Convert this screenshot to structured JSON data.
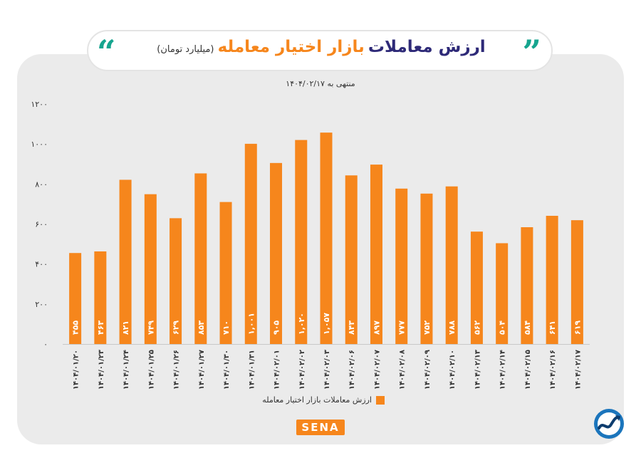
{
  "header": {
    "title_dark": "ارزش معاملات",
    "title_accent": "بازار اختیار معامله",
    "unit": "(میلیارد تومان)"
  },
  "subtitle": "منتهی به ۱۴۰۴/۰۲/۱۷",
  "legend": {
    "label": "ارزش معاملات بازار اختیار معامله"
  },
  "brand": {
    "logo_text": "SENA"
  },
  "colors": {
    "bar": "#f6861c",
    "accent": "#16a58f",
    "title": "#2e2a78",
    "panel": "#ebebeb"
  },
  "chart_data": {
    "type": "bar",
    "ylim": [
      0,
      1200
    ],
    "yticks": [
      0,
      200,
      400,
      600,
      800,
      1000,
      1200
    ],
    "ytick_labels": [
      "۰",
      "۲۰۰",
      "۴۰۰",
      "۶۰۰",
      "۸۰۰",
      "۱۰۰۰",
      "۱۲۰۰"
    ],
    "grid": false,
    "legend_position": "bottom",
    "categories": [
      "۱۴۰۴/۰۱/۲۰",
      "۱۴۰۴/۰۱/۲۳",
      "۱۴۰۴/۰۱/۲۴",
      "۱۴۰۴/۰۱/۲۵",
      "۱۴۰۴/۰۱/۲۶",
      "۱۴۰۴/۰۱/۲۷",
      "۱۴۰۴/۰۱/۳۰",
      "۱۴۰۴/۰۱/۳۱",
      "۱۴۰۴/۰۲/۰۱",
      "۱۴۰۴/۰۲/۰۲",
      "۱۴۰۴/۰۲/۰۳",
      "۱۴۰۴/۰۲/۰۶",
      "۱۴۰۴/۰۲/۰۷",
      "۱۴۰۴/۰۲/۰۸",
      "۱۴۰۴/۰۲/۰۹",
      "۱۴۰۴/۰۲/۱۰",
      "۱۴۰۴/۰۲/۱۳",
      "۱۴۰۴/۰۲/۱۴",
      "۱۴۰۴/۰۲/۱۵",
      "۱۴۰۴/۰۲/۱۶",
      "۱۴۰۴/۰۲/۱۷"
    ],
    "values": [
      455,
      463,
      821,
      749,
      629,
      853,
      710,
      1001,
      905,
      1020,
      1057,
      843,
      897,
      777,
      752,
      788,
      562,
      504,
      584,
      641,
      619
    ],
    "value_labels": [
      "۴۵۵",
      "۴۶۳",
      "۸۲۱",
      "۷۴۹",
      "۶۲۹",
      "۸۵۳",
      "۷۱۰",
      "۱,۰۰۱",
      "۹۰۵",
      "۱,۰۲۰",
      "۱,۰۵۷",
      "۸۴۳",
      "۸۹۷",
      "۷۷۷",
      "۷۵۲",
      "۷۸۸",
      "۵۶۲",
      "۵۰۴",
      "۵۸۴",
      "۶۴۱",
      "۶۱۹"
    ]
  }
}
